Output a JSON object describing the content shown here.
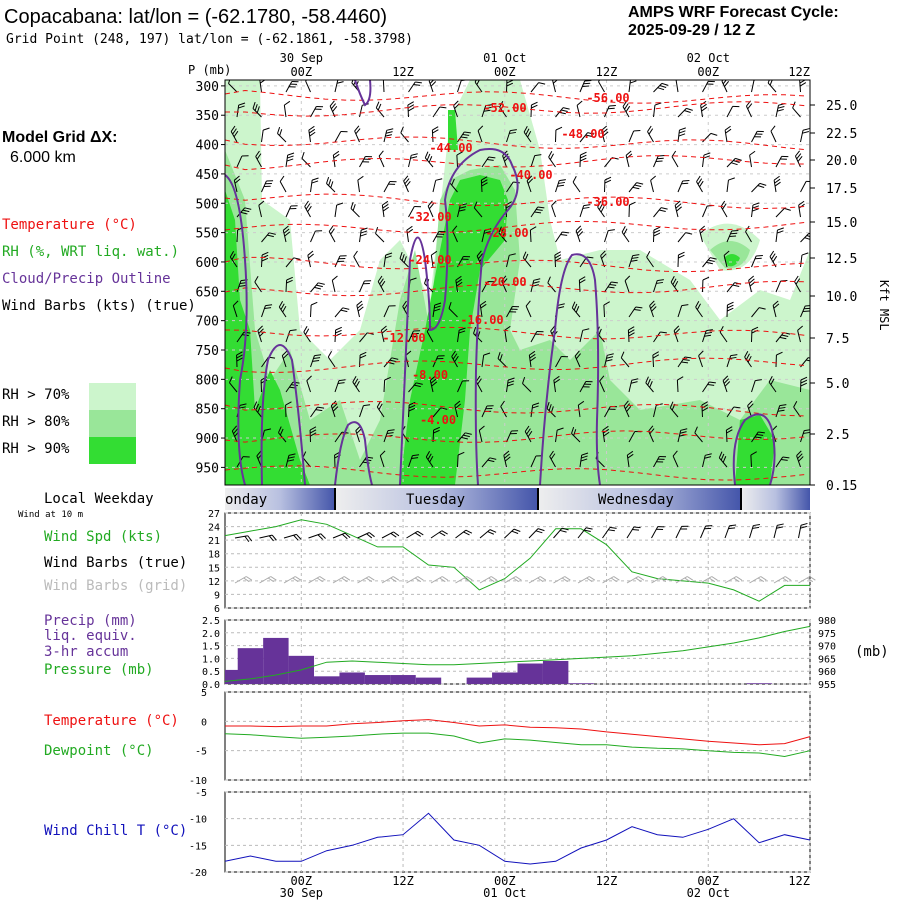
{
  "header": {
    "title": "Copacabana:  lat/lon = (-62.1780, -58.4460)",
    "subtitle": "Grid Point (248, 197) lat/lon = (-62.1861, -58.3798)",
    "cycle_line1": "AMPS WRF Forecast Cycle:",
    "cycle_line2": "2025-09-29 / 12  Z"
  },
  "model_grid": {
    "line1": "Model Grid ΔX:",
    "line2": "6.000 km"
  },
  "legend": {
    "temperature": "Temperature (°C)",
    "rh": "RH (%, WRT liq. wat.)",
    "cloud": "Cloud/Precip Outline",
    "wind": "Wind Barbs (kts) (true)",
    "rh70": "RH > 70%",
    "rh80": "RH > 80%",
    "rh90": "RH > 90%",
    "pressure_axis": "P (mb)",
    "height_axis": "Kft MSL",
    "colors": {
      "rh70": "#ccf5cc",
      "rh80": "#99e699",
      "rh90": "#33dd33",
      "temp": "#ee1111",
      "cloud": "#663399"
    }
  },
  "weekday": {
    "label": "Local Weekday",
    "days": [
      "onday",
      "Tuesday",
      "Wednesday"
    ],
    "wind_note": "Wind at 10 m"
  },
  "time_axis": {
    "top_dates": [
      "30 Sep",
      "01 Oct",
      "02 Oct"
    ],
    "ticks": [
      "00Z",
      "12Z",
      "00Z",
      "12Z",
      "00Z",
      "12Z"
    ],
    "bottom_dates": [
      "30 Sep",
      "01 Oct",
      "02 Oct"
    ]
  },
  "panels": {
    "wind_spd": "Wind Spd (kts)",
    "wind_barbs_true": "Wind Barbs (true)",
    "wind_barbs_grid": "Wind Barbs (grid)",
    "precip1": "Precip (mm)",
    "precip2": "liq. equiv.",
    "precip3": "3-hr accum",
    "pressure": "Pressure (mb)",
    "pressure_unit": "(mb)",
    "temperature": "Temperature (°C)",
    "dewpoint": "Dewpoint (°C)",
    "wind_chill": "Wind Chill T (°C)"
  },
  "chart_data": [
    {
      "type": "heatmap",
      "title": "Vertical cross-section: Temperature, RH, Cloud outline, Wind",
      "ylabel": "P (mb)",
      "y2label": "Kft MSL",
      "pressure_ticks": [
        "300",
        "350",
        "400",
        "450",
        "500",
        "550",
        "600",
        "650",
        "700",
        "750",
        "800",
        "850",
        "900",
        "950"
      ],
      "height_ticks": [
        "25.0",
        "22.5",
        "20.0",
        "17.5",
        "15.0",
        "12.5",
        "10.0",
        "7.5",
        "5.0",
        "2.5",
        "0.15"
      ],
      "temperature_labels": [
        "-56.00",
        "-52.00",
        "-48.00",
        "-44.00",
        "-40.00",
        "-36.00",
        "-32.00",
        "-28.00",
        "-24.00",
        "-20.00",
        "-16.00",
        "-12.00",
        "-8.00",
        "-4.00"
      ]
    },
    {
      "type": "line",
      "title": "Wind Spd (kts)",
      "yticks": [
        "27",
        "24",
        "21",
        "18",
        "15",
        "12",
        "9",
        "6"
      ],
      "ylim": [
        6,
        27
      ],
      "x_hours": [
        -9,
        -6,
        -3,
        0,
        3,
        6,
        9,
        12,
        15,
        18,
        21,
        24,
        27,
        30,
        33,
        36,
        39,
        42,
        45,
        48,
        51,
        54,
        57,
        60
      ],
      "values": [
        22,
        23,
        24,
        25.5,
        24.5,
        22,
        19.5,
        19.5,
        15.5,
        15,
        10,
        12.5,
        17,
        23.5,
        23.5,
        20,
        14,
        12.5,
        12,
        11.5,
        10,
        7.5,
        11,
        11
      ]
    },
    {
      "type": "bar",
      "title": "Precip (mm) liq. equiv. 3-hr accum",
      "yticks": [
        "2.5",
        "2.0",
        "1.5",
        "1.0",
        "0.5",
        "0.0"
      ],
      "ylim": [
        0,
        2.5
      ],
      "x_hours": [
        -9,
        -6,
        -3,
        0,
        3,
        6,
        9,
        12,
        15,
        18,
        21,
        24,
        27,
        30,
        33,
        36,
        39,
        42,
        45,
        48,
        51,
        54,
        57,
        60
      ],
      "values": [
        0.55,
        1.4,
        1.8,
        1.1,
        0.3,
        0.45,
        0.35,
        0.35,
        0.25,
        0,
        0.25,
        0.45,
        0.8,
        0.9,
        0.03,
        0,
        0,
        0,
        0,
        0,
        0,
        0.03,
        0,
        0
      ]
    },
    {
      "type": "line",
      "title": "Pressure (mb)",
      "yticks": [
        "980",
        "975",
        "970",
        "965",
        "960",
        "955"
      ],
      "ylim": [
        955,
        980
      ],
      "x_hours": [
        -9,
        -6,
        -3,
        0,
        3,
        6,
        9,
        12,
        15,
        18,
        21,
        24,
        27,
        30,
        33,
        36,
        39,
        42,
        45,
        48,
        51,
        54,
        57,
        60
      ],
      "values": [
        956,
        957,
        958.5,
        960.5,
        963.5,
        964,
        963.5,
        963,
        962.5,
        962.5,
        963,
        963.5,
        964,
        964.5,
        965,
        965.5,
        966,
        967,
        968,
        969.5,
        971,
        973,
        975.5,
        977.5
      ]
    },
    {
      "type": "line",
      "title": "Temperature / Dewpoint (°C)",
      "yticks": [
        "5",
        "0",
        "-5",
        "-10"
      ],
      "ylim": [
        -10,
        5
      ],
      "x_hours": [
        -9,
        -6,
        -3,
        0,
        3,
        6,
        9,
        12,
        15,
        18,
        21,
        24,
        27,
        30,
        33,
        36,
        39,
        42,
        45,
        48,
        51,
        54,
        57,
        60
      ],
      "series": [
        {
          "name": "Temperature (°C)",
          "values": [
            -0.8,
            -0.8,
            -0.9,
            -0.8,
            -0.8,
            -0.4,
            -0.2,
            0.1,
            0.3,
            -0.2,
            -0.8,
            -0.6,
            -1,
            -1.1,
            -1.3,
            -1.8,
            -2.2,
            -2.6,
            -3,
            -3.4,
            -3.7,
            -4,
            -3.8,
            -2.6
          ]
        },
        {
          "name": "Dewpoint (°C)",
          "values": [
            -2.1,
            -2.3,
            -2.6,
            -2.9,
            -2.7,
            -2.5,
            -2.2,
            -2,
            -2,
            -2.5,
            -3.7,
            -3,
            -3.2,
            -3.6,
            -4,
            -4,
            -4.4,
            -4.6,
            -4.7,
            -5,
            -5.3,
            -5.4,
            -6,
            -5
          ]
        }
      ]
    },
    {
      "type": "line",
      "title": "Wind Chill T (°C)",
      "yticks": [
        "-5",
        "-10",
        "-15",
        "-20"
      ],
      "ylim": [
        -20,
        -5
      ],
      "x_hours": [
        -9,
        -6,
        -3,
        0,
        3,
        6,
        9,
        12,
        15,
        18,
        21,
        24,
        27,
        30,
        33,
        36,
        39,
        42,
        45,
        48,
        51,
        54,
        57,
        60
      ],
      "values": [
        -18,
        -17,
        -18,
        -18,
        -16,
        -15,
        -13.5,
        -13,
        -9,
        -14,
        -15,
        -18,
        -18.5,
        -18,
        -15.5,
        -14,
        -11.5,
        -13,
        -13.5,
        -12,
        -10,
        -14.5,
        -13,
        -14
      ]
    }
  ]
}
